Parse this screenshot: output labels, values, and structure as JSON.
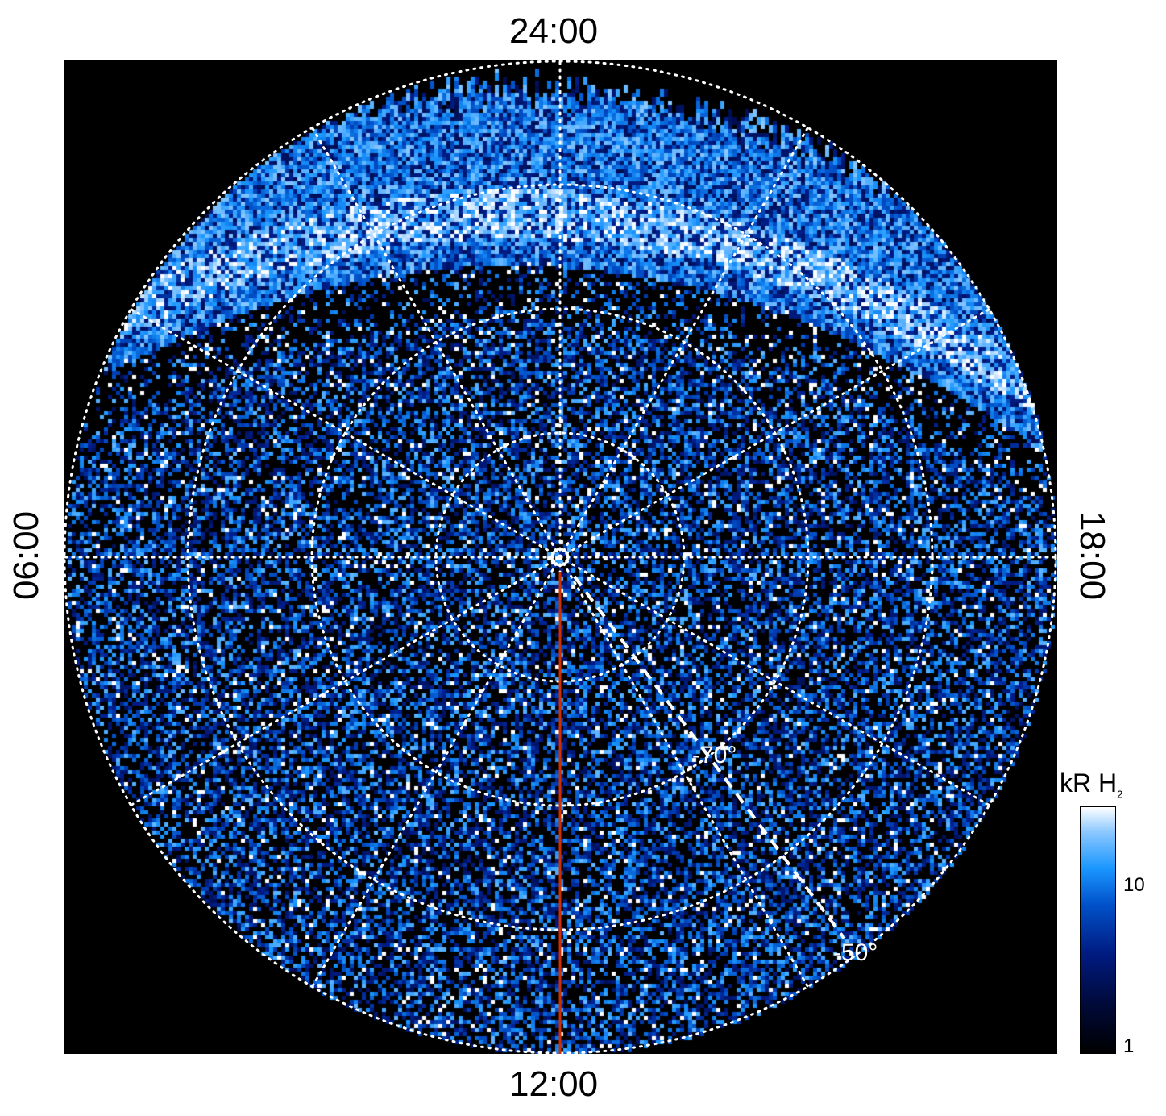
{
  "chart_data": {
    "type": "heatmap",
    "projection": "polar",
    "local_time_labels": {
      "top": "24:00",
      "bottom": "12:00",
      "left": "06:00",
      "right": "18:00"
    },
    "latitude_labels": [
      "-70°",
      "-50°"
    ],
    "latitude_rings": [
      -80,
      -70,
      -60,
      -50
    ],
    "meridian_spacing_hours": 2,
    "grid": true,
    "colorbar": {
      "title": "kR H",
      "title_subscript": "2",
      "scale": "log",
      "range": [
        1,
        30
      ],
      "ticks": [
        "10",
        "1"
      ],
      "colors": [
        "#000000",
        "#001a80",
        "#0050c8",
        "#1a96ff",
        "#8cc8ff",
        "#ffffff"
      ]
    },
    "highlight_meridian_color": "#d03000"
  }
}
